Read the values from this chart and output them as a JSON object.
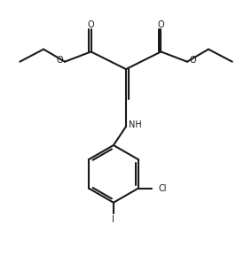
{
  "background_color": "#ffffff",
  "line_color": "#1a1a1a",
  "line_width": 1.5,
  "font_size_labels": 7.0,
  "fig_width": 2.84,
  "fig_height": 2.97,
  "dpi": 100,
  "xlim": [
    0,
    10
  ],
  "ylim": [
    0,
    10.5
  ]
}
